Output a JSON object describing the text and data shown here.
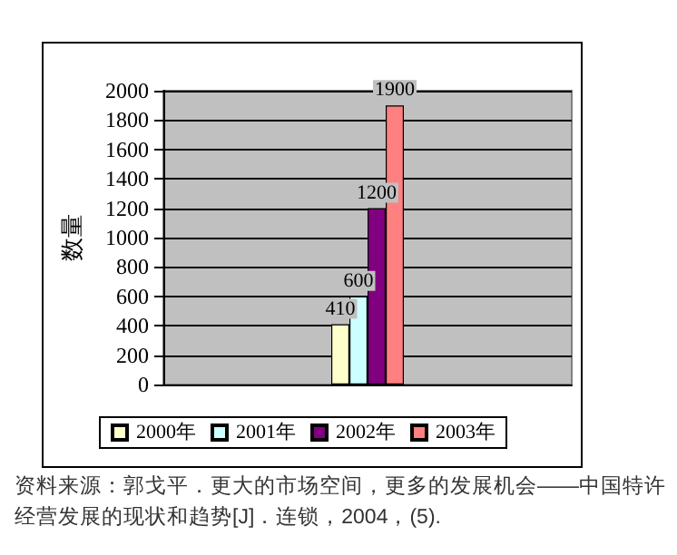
{
  "chart_data": {
    "type": "bar",
    "ylabel": "数量",
    "categories": [
      null
    ],
    "series": [
      {
        "name": "2000年",
        "color": "#ffffcc",
        "values": [
          410
        ]
      },
      {
        "name": "2001年",
        "color": "#ccffff",
        "values": [
          600
        ]
      },
      {
        "name": "2002年",
        "color": "#800080",
        "values": [
          1200
        ]
      },
      {
        "name": "2003年",
        "color": "#ff8080",
        "values": [
          1900
        ]
      }
    ],
    "ylim": [
      0,
      2000
    ],
    "yticks": [
      0,
      200,
      400,
      600,
      800,
      1000,
      1200,
      1400,
      1600,
      1800,
      2000
    ],
    "grid": "y",
    "legend": "bottom",
    "data_labels": true,
    "annotations": [
      "资料来源：郭戈平．更大的市场空间，更多的发展机会——中国特许经营发展的现状和趋势[J]．连锁，2004，(5)."
    ]
  }
}
